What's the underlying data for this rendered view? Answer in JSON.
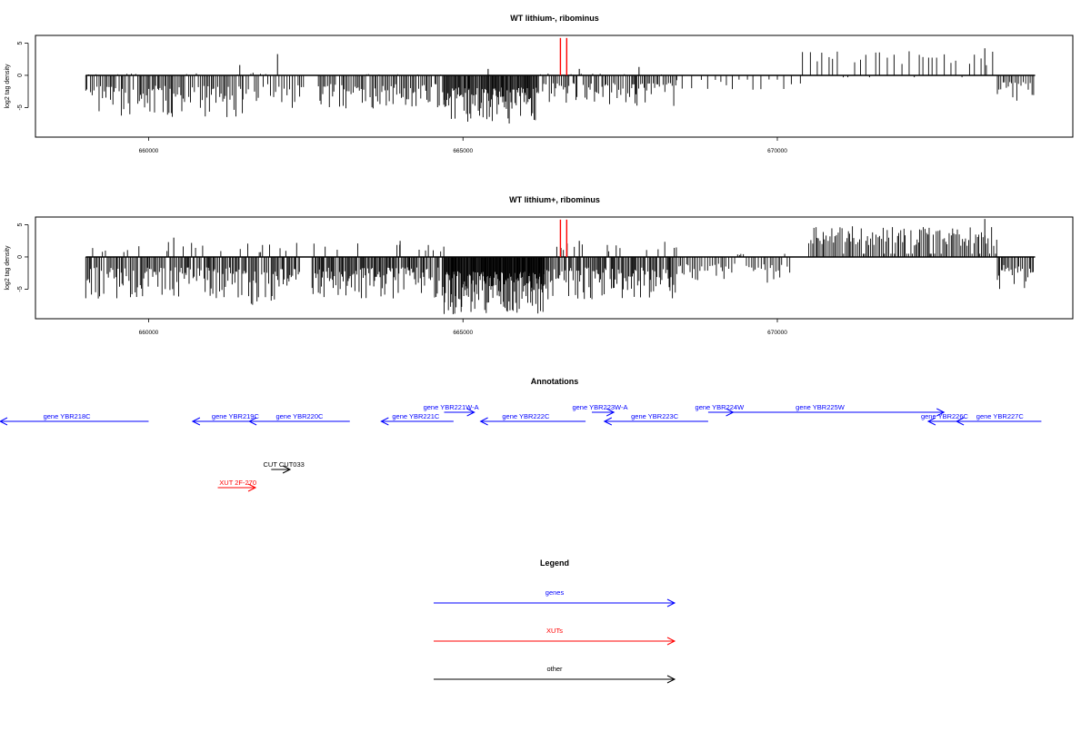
{
  "chart_data": [
    {
      "type": "bar",
      "title": "WT lithium-, ribominus",
      "ylabel": "log2 tag density",
      "xlabel": "",
      "xlim": [
        658200,
        674700
      ],
      "ylim": [
        -9.6,
        6.2
      ],
      "xticks": [
        660000,
        665000,
        670000
      ],
      "yticks": [
        5,
        0,
        -5
      ],
      "markers": [
        {
          "x": 666550,
          "y": 5.8
        },
        {
          "x": 666650,
          "y": 5.8
        }
      ],
      "marker_color": "#ff0000",
      "segments": [
        {
          "from": 659000,
          "to": 661500,
          "min": -6.5,
          "max": 0.3,
          "step": 25
        },
        {
          "from": 661500,
          "to": 662500,
          "min": -5.5,
          "max": 0.5,
          "step": 40
        },
        {
          "from": 662700,
          "to": 664700,
          "min": -5.2,
          "max": 0.2,
          "step": 25
        },
        {
          "from": 664700,
          "to": 666200,
          "min": -7.5,
          "max": -1.5,
          "step": 15
        },
        {
          "from": 666200,
          "to": 668400,
          "min": -4.8,
          "max": 0.3,
          "step": 25
        },
        {
          "from": 668400,
          "to": 670400,
          "min": -2.5,
          "max": 0,
          "step": 110
        },
        {
          "from": 670400,
          "to": 673500,
          "min": -0.3,
          "max": 3.8,
          "step": 90
        },
        {
          "from": 673500,
          "to": 674100,
          "min": -4.2,
          "max": 0,
          "step": 30
        }
      ],
      "spikes": [
        {
          "x": 661450,
          "y": 1.6
        },
        {
          "x": 662050,
          "y": 3.3
        },
        {
          "x": 665400,
          "y": 1
        },
        {
          "x": 666850,
          "y": 1
        },
        {
          "x": 667800,
          "y": 1.3
        },
        {
          "x": 673300,
          "y": 4.2
        }
      ],
      "seed": 11
    },
    {
      "type": "bar",
      "title": "WT lithium+, ribominus",
      "ylabel": "log2 tag density",
      "xlabel": "",
      "xlim": [
        658200,
        674700
      ],
      "ylim": [
        -9.6,
        6.2
      ],
      "xticks": [
        660000,
        665000,
        670000
      ],
      "yticks": [
        5,
        0,
        -5
      ],
      "markers": [
        {
          "x": 666550,
          "y": 5.8
        },
        {
          "x": 666650,
          "y": 5.8
        }
      ],
      "marker_color": "#ff0000",
      "segments": [
        {
          "from": 659000,
          "to": 661500,
          "min": -6.5,
          "max": 2.5,
          "step": 20
        },
        {
          "from": 661500,
          "to": 662400,
          "min": -7.5,
          "max": 2.3,
          "step": 20
        },
        {
          "from": 662600,
          "to": 664700,
          "min": -6.5,
          "max": 2.2,
          "step": 18
        },
        {
          "from": 664700,
          "to": 666300,
          "min": -9,
          "max": -1.5,
          "step": 10
        },
        {
          "from": 666300,
          "to": 668400,
          "min": -6.6,
          "max": 2.4,
          "step": 18
        },
        {
          "from": 668400,
          "to": 670200,
          "min": -4,
          "max": 0.5,
          "step": 35
        },
        {
          "from": 670500,
          "to": 673500,
          "min": 0.5,
          "max": 4.8,
          "step": 25
        },
        {
          "from": 673500,
          "to": 674100,
          "min": -5,
          "max": 0,
          "step": 25
        }
      ],
      "spikes": [
        {
          "x": 660400,
          "y": 3
        },
        {
          "x": 664000,
          "y": 2.5
        },
        {
          "x": 673300,
          "y": 5.9
        },
        {
          "x": 666850,
          "y": 2.5
        }
      ],
      "seed": 29
    }
  ],
  "annotations": {
    "title": "Annotations",
    "xlim": [
      658200,
      674700
    ],
    "features": [
      {
        "label": "gene YBR218C",
        "start": 657300,
        "end": 660000,
        "dir": "-",
        "row": 1,
        "type": "gene",
        "label_at": 658700
      },
      {
        "label": "gene YBR219C",
        "start": 660700,
        "end": 661700,
        "dir": "-",
        "row": 1,
        "type": "gene",
        "label_at": 661380
      },
      {
        "label": "gene YBR220C",
        "start": 661600,
        "end": 663200,
        "dir": "-",
        "row": 1,
        "type": "gene",
        "label_at": 662400
      },
      {
        "label": "gene YBR221C",
        "start": 663700,
        "end": 664850,
        "dir": "-",
        "row": 1,
        "type": "gene",
        "label_at": 664250
      },
      {
        "label": "gene YBR221W-A",
        "start": 664700,
        "end": 665180,
        "dir": "+",
        "row": 0,
        "type": "gene",
        "label_at": 664810
      },
      {
        "label": "gene YBR222C",
        "start": 665280,
        "end": 666950,
        "dir": "-",
        "row": 1,
        "type": "gene",
        "label_at": 666000
      },
      {
        "label": "gene YBR223W-A",
        "start": 667050,
        "end": 667400,
        "dir": "+",
        "row": 0,
        "type": "gene",
        "label_at": 667180
      },
      {
        "label": "gene YBR223C",
        "start": 667250,
        "end": 668900,
        "dir": "-",
        "row": 1,
        "type": "gene",
        "label_at": 668050
      },
      {
        "label": "gene YBR224W",
        "start": 668900,
        "end": 669300,
        "dir": "+",
        "row": 0,
        "type": "gene",
        "label_at": 669080
      },
      {
        "label": "gene YBR225W",
        "start": 669300,
        "end": 672650,
        "dir": "+",
        "row": 0,
        "type": "gene",
        "label_at": 670680
      },
      {
        "label": "gene YBR226C",
        "start": 672400,
        "end": 672850,
        "dir": "-",
        "row": 1,
        "type": "gene",
        "label_at": 672660
      },
      {
        "label": "gene YBR227C",
        "start": 672850,
        "end": 674200,
        "dir": "-",
        "row": 1,
        "type": "gene",
        "label_at": 673540
      },
      {
        "label": "CUT CUT033",
        "start": 661950,
        "end": 662250,
        "dir": "+",
        "row": 2,
        "type": "other",
        "label_at": 662150
      },
      {
        "label": "XUT 2F-270",
        "start": 661100,
        "end": 661700,
        "dir": "+",
        "row": 3,
        "type": "xut",
        "label_at": 661420
      }
    ]
  },
  "legend": {
    "title": "Legend",
    "items": [
      {
        "label": "genes",
        "color": "#0000ff"
      },
      {
        "label": "XUTs",
        "color": "#ff0000"
      },
      {
        "label": "other",
        "color": "#000000"
      }
    ]
  },
  "colors": {
    "gene": "#0000ff",
    "xut": "#ff0000",
    "other": "#000000"
  }
}
